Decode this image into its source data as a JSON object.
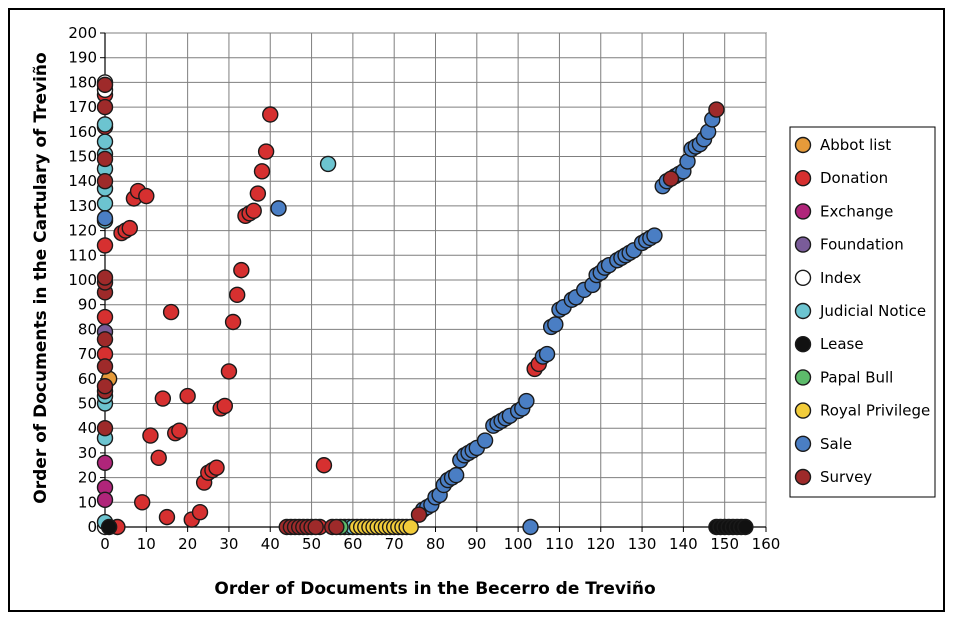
{
  "chart_data": {
    "type": "scatter",
    "title": "",
    "xlabel": "Order of Documents in the Becerro de Treviño",
    "ylabel": "Order of Documents in the Cartulary of Treviño",
    "xlim": [
      0,
      160
    ],
    "ylim": [
      0,
      200
    ],
    "xticks": [
      0,
      10,
      20,
      30,
      40,
      50,
      60,
      70,
      80,
      90,
      100,
      110,
      120,
      130,
      140,
      150,
      160
    ],
    "yticks": [
      0,
      10,
      20,
      30,
      40,
      50,
      60,
      70,
      80,
      90,
      100,
      110,
      120,
      130,
      140,
      150,
      160,
      170,
      180,
      190,
      200
    ],
    "grid": true,
    "legend_position": "right",
    "series": [
      {
        "name": "Abbot list",
        "color": "#E59A3A",
        "points": [
          [
            1,
            60
          ]
        ]
      },
      {
        "name": "Donation",
        "color": "#D63030",
        "points": [
          [
            0,
            114
          ],
          [
            0,
            162
          ],
          [
            0,
            175
          ],
          [
            0,
            85
          ],
          [
            0,
            70
          ],
          [
            3,
            0
          ],
          [
            4,
            119
          ],
          [
            5,
            120
          ],
          [
            6,
            121
          ],
          [
            7,
            133
          ],
          [
            8,
            136
          ],
          [
            9,
            10
          ],
          [
            10,
            134
          ],
          [
            11,
            37
          ],
          [
            13,
            28
          ],
          [
            14,
            52
          ],
          [
            15,
            4
          ],
          [
            16,
            87
          ],
          [
            17,
            38
          ],
          [
            18,
            39
          ],
          [
            20,
            53
          ],
          [
            21,
            3
          ],
          [
            23,
            6
          ],
          [
            24,
            18
          ],
          [
            25,
            22
          ],
          [
            26,
            23
          ],
          [
            27,
            24
          ],
          [
            28,
            48
          ],
          [
            29,
            49
          ],
          [
            30,
            63
          ],
          [
            31,
            83
          ],
          [
            32,
            94
          ],
          [
            33,
            104
          ],
          [
            34,
            126
          ],
          [
            35,
            127
          ],
          [
            36,
            128
          ],
          [
            37,
            135
          ],
          [
            38,
            144
          ],
          [
            39,
            152
          ],
          [
            40,
            167
          ],
          [
            52,
            0
          ],
          [
            53,
            25
          ],
          [
            104,
            64
          ],
          [
            105,
            66
          ]
        ]
      },
      {
        "name": "Exchange",
        "color": "#B0257A",
        "points": [
          [
            0,
            26
          ],
          [
            0,
            16
          ],
          [
            0,
            11
          ]
        ]
      },
      {
        "name": "Foundation",
        "color": "#7A5C99",
        "points": [
          [
            0,
            79
          ]
        ]
      },
      {
        "name": "Index",
        "color": "#FFFFFF",
        "points": [
          [
            0,
            180
          ],
          [
            0,
            177
          ],
          [
            0,
            0
          ]
        ]
      },
      {
        "name": "Judicial Notice",
        "color": "#6CC4D0",
        "points": [
          [
            0,
            2
          ],
          [
            0,
            36
          ],
          [
            0,
            50
          ],
          [
            0,
            53
          ],
          [
            0,
            124
          ],
          [
            0,
            131
          ],
          [
            0,
            137
          ],
          [
            0,
            145
          ],
          [
            0,
            151
          ],
          [
            0,
            156
          ],
          [
            0,
            163
          ],
          [
            54,
            147
          ],
          [
            58,
            0
          ],
          [
            59,
            0
          ],
          [
            60,
            0
          ]
        ]
      },
      {
        "name": "Lease",
        "color": "#111111",
        "points": [
          [
            1,
            0
          ],
          [
            148,
            0
          ],
          [
            149,
            0
          ],
          [
            150,
            0
          ],
          [
            151,
            0
          ],
          [
            152,
            0
          ],
          [
            153,
            0
          ],
          [
            154,
            0
          ],
          [
            155,
            0
          ]
        ]
      },
      {
        "name": "Papal Bull",
        "color": "#5DBB6B",
        "points": [
          [
            57,
            0
          ]
        ]
      },
      {
        "name": "Royal Privilege",
        "color": "#F2CC3A",
        "points": [
          [
            61,
            0
          ],
          [
            62,
            0
          ],
          [
            63,
            0
          ],
          [
            64,
            0
          ],
          [
            65,
            0
          ],
          [
            66,
            0
          ],
          [
            67,
            0
          ],
          [
            68,
            0
          ],
          [
            69,
            0
          ],
          [
            70,
            0
          ],
          [
            71,
            0
          ],
          [
            72,
            0
          ],
          [
            73,
            0
          ],
          [
            74,
            0
          ]
        ]
      },
      {
        "name": "Sale",
        "color": "#4A7EC4",
        "points": [
          [
            0,
            125
          ],
          [
            42,
            129
          ],
          [
            77,
            7
          ],
          [
            78,
            8
          ],
          [
            79,
            9
          ],
          [
            80,
            12
          ],
          [
            81,
            13
          ],
          [
            82,
            17
          ],
          [
            83,
            19
          ],
          [
            84,
            20
          ],
          [
            85,
            21
          ],
          [
            86,
            27
          ],
          [
            87,
            29
          ],
          [
            88,
            30
          ],
          [
            89,
            31
          ],
          [
            90,
            32
          ],
          [
            92,
            35
          ],
          [
            94,
            41
          ],
          [
            95,
            42
          ],
          [
            96,
            43
          ],
          [
            97,
            44
          ],
          [
            98,
            45
          ],
          [
            100,
            47
          ],
          [
            101,
            48
          ],
          [
            102,
            51
          ],
          [
            103,
            0
          ],
          [
            106,
            69
          ],
          [
            107,
            70
          ],
          [
            108,
            81
          ],
          [
            109,
            82
          ],
          [
            110,
            88
          ],
          [
            111,
            89
          ],
          [
            113,
            92
          ],
          [
            114,
            93
          ],
          [
            116,
            96
          ],
          [
            118,
            98
          ],
          [
            119,
            102
          ],
          [
            120,
            103
          ],
          [
            121,
            105
          ],
          [
            122,
            106
          ],
          [
            124,
            108
          ],
          [
            125,
            109
          ],
          [
            126,
            110
          ],
          [
            127,
            111
          ],
          [
            128,
            112
          ],
          [
            130,
            115
          ],
          [
            131,
            116
          ],
          [
            132,
            117
          ],
          [
            133,
            118
          ],
          [
            135,
            138
          ],
          [
            136,
            140
          ],
          [
            138,
            142
          ],
          [
            139,
            143
          ],
          [
            140,
            144
          ],
          [
            141,
            148
          ],
          [
            142,
            153
          ],
          [
            143,
            154
          ],
          [
            144,
            155
          ],
          [
            145,
            157
          ],
          [
            146,
            160
          ],
          [
            147,
            165
          ]
        ]
      },
      {
        "name": "Survey",
        "color": "#9E2A2A",
        "points": [
          [
            0,
            40
          ],
          [
            0,
            55
          ],
          [
            0,
            57
          ],
          [
            0,
            65
          ],
          [
            0,
            76
          ],
          [
            0,
            95
          ],
          [
            0,
            99
          ],
          [
            0,
            101
          ],
          [
            0,
            140
          ],
          [
            0,
            149
          ],
          [
            0,
            170
          ],
          [
            0,
            179
          ],
          [
            44,
            0
          ],
          [
            45,
            0
          ],
          [
            46,
            0
          ],
          [
            47,
            0
          ],
          [
            48,
            0
          ],
          [
            49,
            0
          ],
          [
            50,
            0
          ],
          [
            51,
            0
          ],
          [
            55,
            0
          ],
          [
            56,
            0
          ],
          [
            76,
            5
          ],
          [
            137,
            141
          ],
          [
            148,
            169
          ]
        ]
      }
    ]
  }
}
